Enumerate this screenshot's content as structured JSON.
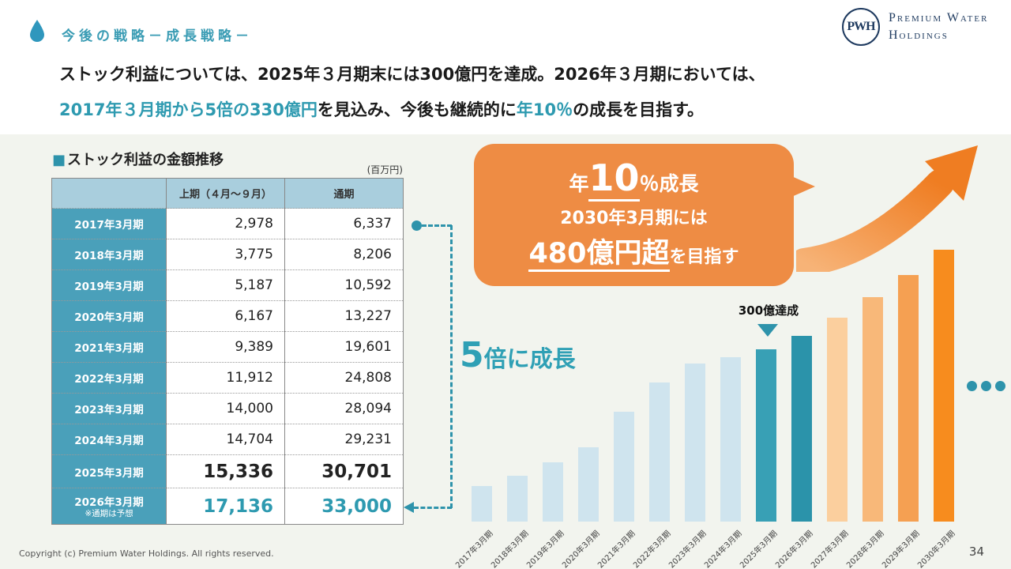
{
  "slide": {
    "header_title": "今後の戦略－成長戦略－",
    "logo": {
      "monogram": "PWH",
      "name_line1": "Premium Water",
      "name_line2": "Holdings"
    },
    "copyright": "Copyright (c) Premium Water Holdings. All rights reserved.",
    "page_number": "34"
  },
  "lead": {
    "line1": "ストック利益については、2025年３月期末には300億円を達成。2026年３月期においては、",
    "line2_highlight1": "2017年３月期から5倍の330億円",
    "line2_mid": "を見込み、今後も継続的に",
    "line2_highlight2": "年10％",
    "line2_end": "の成長を目指す。"
  },
  "table": {
    "title_bullet": "■",
    "title": "ストック利益の金額推移",
    "unit": "(百万円)",
    "columns": [
      "上期（４月～９月）",
      "通期"
    ],
    "rows": [
      {
        "label": "2017年3月期",
        "note": "",
        "first_half": "2,978",
        "full_year": "6,337",
        "style": "normal"
      },
      {
        "label": "2018年3月期",
        "note": "",
        "first_half": "3,775",
        "full_year": "8,206",
        "style": "normal"
      },
      {
        "label": "2019年3月期",
        "note": "",
        "first_half": "5,187",
        "full_year": "10,592",
        "style": "normal"
      },
      {
        "label": "2020年3月期",
        "note": "",
        "first_half": "6,167",
        "full_year": "13,227",
        "style": "normal"
      },
      {
        "label": "2021年3月期",
        "note": "",
        "first_half": "9,389",
        "full_year": "19,601",
        "style": "normal"
      },
      {
        "label": "2022年3月期",
        "note": "",
        "first_half": "11,912",
        "full_year": "24,808",
        "style": "normal"
      },
      {
        "label": "2023年3月期",
        "note": "",
        "first_half": "14,000",
        "full_year": "28,094",
        "style": "normal"
      },
      {
        "label": "2024年3月期",
        "note": "",
        "first_half": "14,704",
        "full_year": "29,231",
        "style": "normal"
      },
      {
        "label": "2025年3月期",
        "note": "",
        "first_half": "15,336",
        "full_year": "30,701",
        "style": "bold"
      },
      {
        "label": "2026年3月期",
        "note": "※通期は予想",
        "first_half": "17,136",
        "full_year": "33,000",
        "style": "teal"
      }
    ]
  },
  "growth_label": {
    "big": "5",
    "rest": "倍に成長"
  },
  "callout": {
    "line1_prefix": "年",
    "line1_big": "10",
    "line1_suffix": "％成長",
    "line2": "2030年3月期には",
    "line3_big": "480億円超",
    "line3_suffix": "を目指す"
  },
  "chart_data": {
    "type": "bar",
    "title": "ストック利益の金額推移",
    "xlabel": "",
    "ylabel": "百万円",
    "ylim": [
      0,
      48500
    ],
    "grid": false,
    "legend": false,
    "categories": [
      "2017年3月期",
      "2018年3月期",
      "2019年3月期",
      "2020年3月期",
      "2021年3月期",
      "2022年3月期",
      "2023年3月期",
      "2024年3月期",
      "2025年3月期",
      "2026年3月期",
      "2027年3月期",
      "2028年3月期",
      "2029年3月期",
      "2030年3月期"
    ],
    "values": [
      6337,
      8206,
      10592,
      13227,
      19601,
      24808,
      28094,
      29231,
      30701,
      33000,
      36300,
      39930,
      43923,
      48315
    ],
    "bar_colors": [
      "#cfe4ee",
      "#cfe4ee",
      "#cfe4ee",
      "#cfe4ee",
      "#cfe4ee",
      "#cfe4ee",
      "#cfe4ee",
      "#cfe4ee",
      "#38a0b5",
      "#2b93aa",
      "#fbcf9e",
      "#f8b879",
      "#f5a052",
      "#f78c1e"
    ],
    "annotations": [
      "300億達成"
    ]
  },
  "colors": {
    "teal_accent": "#2e9ab0",
    "table_header_bg": "#a9cedd",
    "table_label_bg": "#4aa0ba",
    "bubble_orange": "#ee8c44",
    "arrow_orange": "#ef7d22",
    "navy": "#1e3a5f",
    "panel_bg": "#f2f4ee"
  }
}
